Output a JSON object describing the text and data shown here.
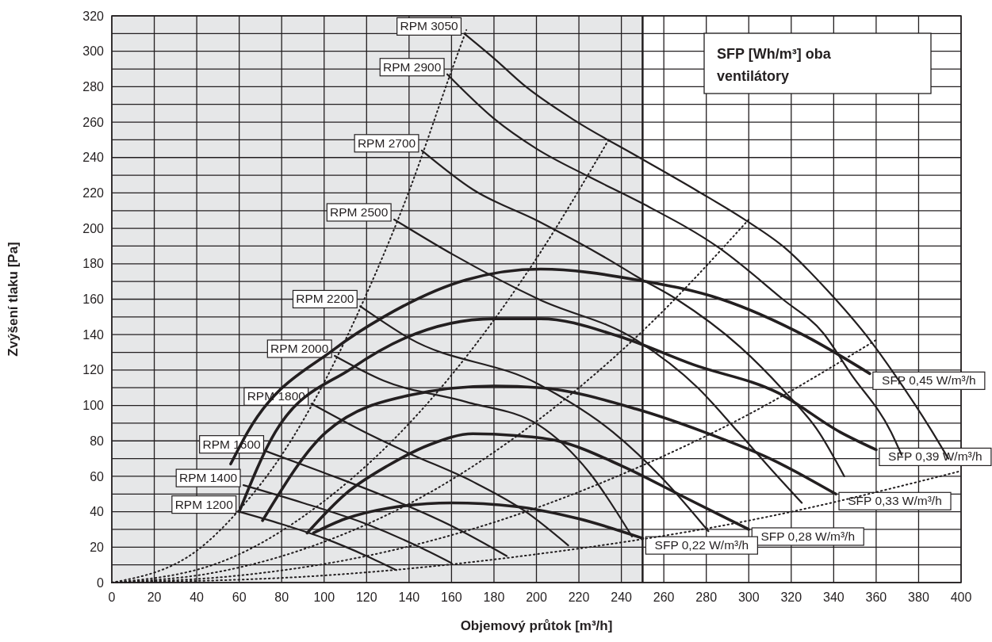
{
  "chart_data": {
    "type": "line",
    "xlabel": "Objemový průtok [m³/h]",
    "ylabel": "Zvýšení tlaku [Pa]",
    "annotations": [
      "SFP [Wh/m³] oba ventilátory"
    ],
    "xlim": [
      0,
      400
    ],
    "ylim": [
      0,
      320
    ],
    "xticks": [
      0,
      20,
      40,
      60,
      80,
      100,
      120,
      140,
      160,
      180,
      200,
      220,
      240,
      260,
      280,
      300,
      320,
      340,
      360,
      380,
      400
    ],
    "yticks": [
      0,
      {
        "value": 10,
        "label": null
      },
      20,
      {
        "value": 30,
        "label": null
      },
      40,
      {
        "value": 50,
        "label": null
      },
      60,
      {
        "value": 70,
        "label": null
      },
      80,
      {
        "value": 90,
        "label": null
      },
      100,
      {
        "value": 110,
        "label": null
      },
      120,
      {
        "value": 130,
        "label": null
      },
      140,
      {
        "value": 150,
        "label": null
      },
      160,
      {
        "value": 170,
        "label": null
      },
      180,
      {
        "value": 190,
        "label": null
      },
      200,
      {
        "value": 210,
        "label": null
      },
      220,
      {
        "value": 230,
        "label": null
      },
      240,
      {
        "value": 250,
        "label": null
      },
      260,
      {
        "value": 270,
        "label": null
      },
      280,
      {
        "value": 290,
        "label": null
      },
      300,
      {
        "value": 310,
        "label": null
      },
      320
    ],
    "grid": true,
    "legend": false,
    "marker": "none",
    "bands": [
      {
        "axis": "x",
        "from": 0,
        "to": 250,
        "color": "#e6e7e8"
      }
    ],
    "ref_lines": [
      {
        "axis": "x",
        "value": 250,
        "color": "#231f20"
      }
    ],
    "series": [
      {
        "name": "RPM 3050",
        "color": "#231f20",
        "line_style": "solid",
        "x": [
          166,
          180,
          194,
          218,
          247,
          276,
          298,
          317,
          337,
          357,
          369,
          386,
          394
        ],
        "values": [
          310,
          296,
          281,
          261,
          241,
          221,
          205,
          189,
          165,
          137,
          117,
          86,
          70
        ]
      },
      {
        "name": "RPM 2900",
        "color": "#231f20",
        "line_style": "solid",
        "x": [
          158,
          180,
          200,
          225,
          250,
          286,
          316,
          335,
          348,
          367,
          372
        ],
        "values": [
          287,
          262,
          245,
          229,
          214,
          189,
          160,
          141,
          118,
          85,
          72
        ]
      },
      {
        "name": "RPM 2700",
        "color": "#231f20",
        "line_style": "solid",
        "x": [
          146,
          170,
          201,
          236,
          247,
          266,
          296,
          316,
          333,
          345
        ],
        "values": [
          244,
          222,
          204,
          181,
          173,
          160,
          133,
          109,
          85,
          60
        ]
      },
      {
        "name": "RPM 2500",
        "color": "#231f20",
        "line_style": "solid",
        "x": [
          133,
          161,
          201,
          247,
          276,
          295,
          312,
          325
        ],
        "values": [
          205,
          185,
          160,
          137,
          110,
          85,
          62,
          45
        ]
      },
      {
        "name": "RPM 2200",
        "color": "#231f20",
        "line_style": "solid",
        "x": [
          117,
          140,
          201,
          236,
          260,
          281
        ],
        "values": [
          156,
          138,
          112,
          85,
          58,
          29
        ]
      },
      {
        "name": "RPM 2000",
        "color": "#231f20",
        "line_style": "solid",
        "x": [
          105,
          128,
          167,
          201,
          225,
          245
        ],
        "values": [
          128,
          114,
          102,
          89,
          62,
          26
        ]
      },
      {
        "name": "RPM 1800",
        "color": "#231f20",
        "line_style": "solid",
        "x": [
          94,
          119,
          140,
          170,
          195,
          215
        ],
        "values": [
          101,
          85,
          73,
          57,
          40,
          21
        ]
      },
      {
        "name": "RPM 1600",
        "color": "#231f20",
        "line_style": "solid",
        "x": [
          73,
          100,
          130,
          160,
          186
        ],
        "values": [
          74,
          62,
          48,
          32,
          15
        ]
      },
      {
        "name": "RPM 1400",
        "color": "#231f20",
        "line_style": "solid",
        "x": [
          62,
          90,
          120,
          145,
          160
        ],
        "values": [
          55,
          45,
          33,
          20,
          11
        ]
      },
      {
        "name": "RPM 1200",
        "color": "#231f20",
        "line_style": "solid",
        "x": [
          60,
          80,
          100,
          120,
          134
        ],
        "values": [
          40,
          33,
          25,
          15,
          7
        ]
      },
      {
        "name": "SFP 0,45 W/m³/h",
        "color": "#231f20",
        "line_style": "solid",
        "x": [
          56,
          64,
          105,
          128,
          167,
          202,
          247,
          287,
          327,
          357
        ],
        "values": [
          67,
          85,
          132,
          150,
          171,
          177,
          171,
          160,
          139,
          118
        ]
      },
      {
        "name": "SFP 0,39 W/m³/h",
        "color": "#231f20",
        "line_style": "solid",
        "x": [
          60,
          77,
          113,
          138,
          180,
          202,
          239,
          274,
          314,
          343,
          360
        ],
        "values": [
          40,
          85,
          121,
          138,
          149,
          149,
          139,
          123,
          107,
          85,
          75
        ]
      },
      {
        "name": "SFP 0,33 W/m³/h",
        "color": "#231f20",
        "line_style": "solid",
        "x": [
          71,
          101,
          141,
          180,
          202,
          247,
          279,
          310,
          341
        ],
        "values": [
          35,
          85,
          106,
          111,
          110,
          98,
          85,
          70,
          50
        ]
      },
      {
        "name": "SFP 0,28 W/m³/h",
        "color": "#231f20",
        "line_style": "solid",
        "x": [
          92,
          110,
          130,
          150,
          170,
          190,
          210,
          240,
          270,
          300
        ],
        "values": [
          28,
          50,
          66,
          78,
          84,
          83,
          80,
          66,
          48,
          30
        ]
      },
      {
        "name": "SFP 0,22 W/m³/h",
        "color": "#231f20",
        "line_style": "solid",
        "x": [
          95,
          110,
          130,
          160,
          190,
          220,
          250
        ],
        "values": [
          28,
          36,
          42,
          45,
          43,
          36,
          25
        ]
      },
      {
        "color": "#231f20",
        "line_style": "dotted",
        "x": [
          0,
          40,
          60,
          80,
          100,
          120,
          140,
          160,
          167
        ],
        "values": [
          0,
          18,
          41,
          72,
          113,
          163,
          221,
          289,
          312
        ]
      },
      {
        "color": "#231f20",
        "line_style": "dotted",
        "x": [
          0,
          50,
          100,
          150,
          200,
          234
        ],
        "values": [
          0,
          11,
          46,
          103,
          183,
          250
        ]
      },
      {
        "color": "#231f20",
        "line_style": "dotted",
        "x": [
          0,
          50,
          100,
          150,
          200,
          250,
          300
        ],
        "values": [
          0,
          6,
          23,
          51,
          91,
          142,
          205
        ]
      },
      {
        "color": "#231f20",
        "line_style": "dotted",
        "x": [
          0,
          60,
          120,
          180,
          240,
          300,
          360
        ],
        "values": [
          0,
          4,
          15,
          34,
          61,
          95,
          137
        ]
      },
      {
        "color": "#231f20",
        "line_style": "dotted",
        "x": [
          0,
          100,
          200,
          300,
          400
        ],
        "values": [
          0,
          4,
          16,
          35,
          63
        ]
      }
    ]
  }
}
